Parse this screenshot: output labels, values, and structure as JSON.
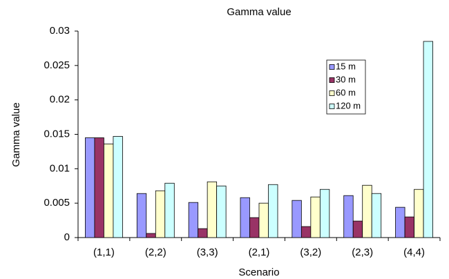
{
  "chart_data": {
    "type": "bar",
    "title": "Gamma value",
    "x_label": "Scenario",
    "y_label": "Gamma value",
    "categories": [
      "(1,1)",
      "(2,2)",
      "(3,3)",
      "(2,1)",
      "(3,2)",
      "(2,3)",
      "(4,4)"
    ],
    "series": [
      {
        "name": "15 m",
        "color": "#9999ff",
        "values": [
          0.0145,
          0.0064,
          0.0051,
          0.0058,
          0.0054,
          0.0061,
          0.0044
        ]
      },
      {
        "name": "30 m",
        "color": "#993366",
        "values": [
          0.0145,
          0.0006,
          0.0013,
          0.0029,
          0.0016,
          0.0024,
          0.003
        ]
      },
      {
        "name": "60 m",
        "color": "#ffffcc",
        "values": [
          0.0136,
          0.0068,
          0.0081,
          0.005,
          0.0059,
          0.0076,
          0.007
        ]
      },
      {
        "name": "120 m",
        "color": "#ccffff",
        "values": [
          0.0147,
          0.0079,
          0.0075,
          0.0077,
          0.007,
          0.0064,
          0.0285
        ]
      }
    ],
    "ylim": [
      0,
      0.03
    ],
    "yticks": [
      0,
      0.005,
      0.01,
      0.015,
      0.02,
      0.025,
      0.03
    ],
    "grid": false,
    "legend": "upper right"
  }
}
